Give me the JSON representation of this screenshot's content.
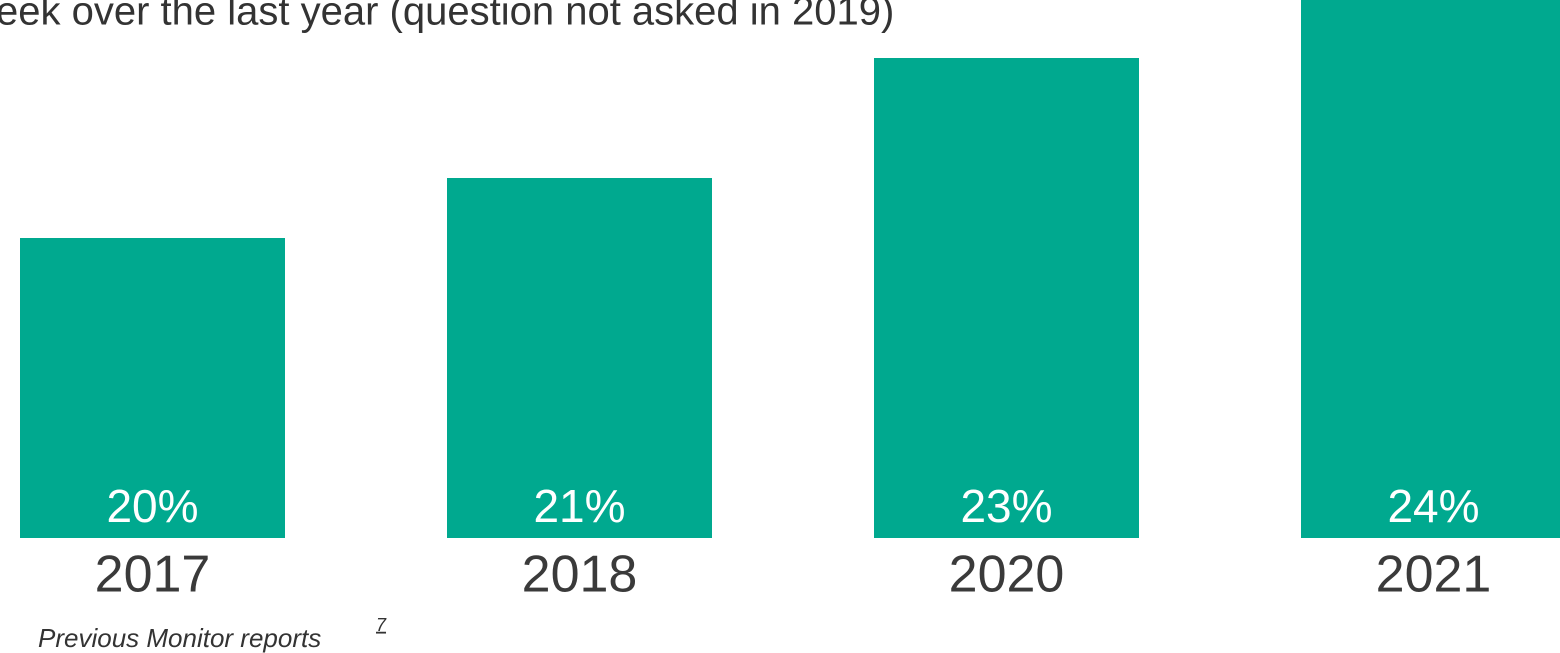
{
  "chart_data": {
    "type": "bar",
    "title": "eek over the last year (question not asked in 2019)",
    "categories": [
      "2017",
      "2018",
      "2020",
      "2021"
    ],
    "values": [
      20,
      21,
      23,
      24
    ],
    "value_labels": [
      "20%",
      "21%",
      "23%",
      "24%"
    ],
    "color": "#00a98f",
    "ylim": [
      15,
      24
    ],
    "source": "Previous Monitor reports",
    "source_ref": "7"
  }
}
